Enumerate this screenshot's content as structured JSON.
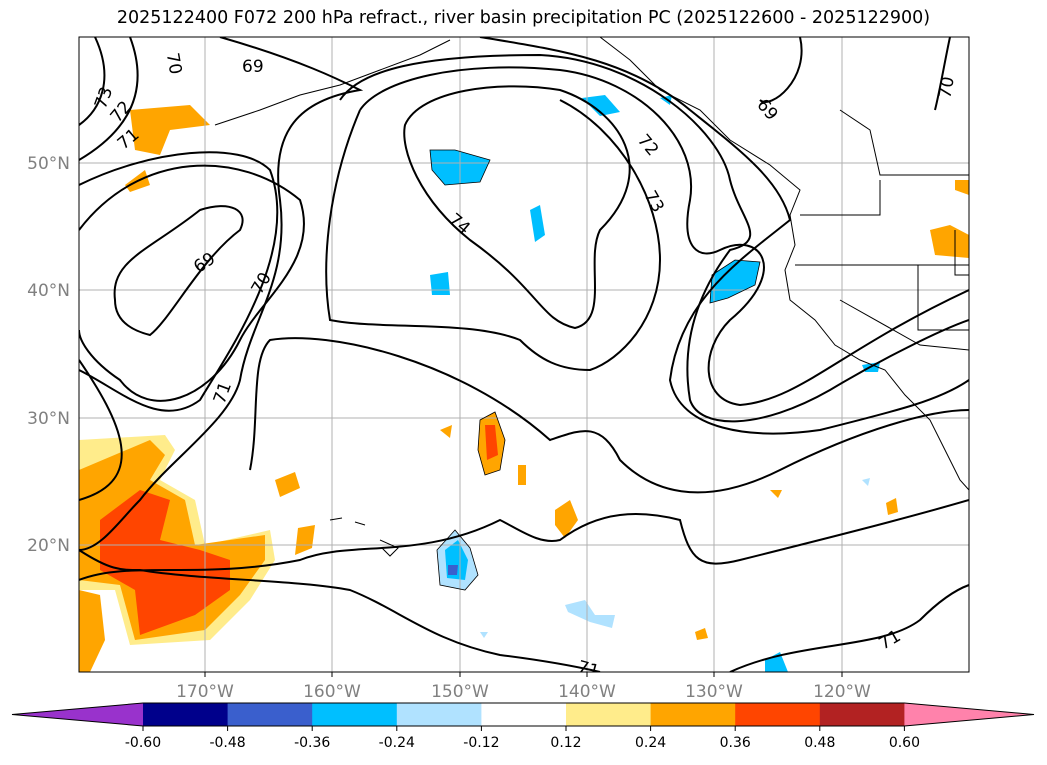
{
  "title": "2025122400 F072 200 hPa refract., river basin precipitation PC (2025122600 - 2025122900)",
  "lon_labels": [
    "170°W",
    "160°W",
    "150°W",
    "140°W",
    "130°W",
    "120°W"
  ],
  "lat_labels": [
    "50°N",
    "40°N",
    "30°N",
    "20°N"
  ],
  "contour_labels": [
    "70",
    "69",
    "73",
    "72",
    "71",
    "74",
    "72",
    "73",
    "69",
    "70",
    "69",
    "70",
    "71",
    "71",
    "71"
  ],
  "colorbar": {
    "ticks": [
      "-0.60",
      "-0.48",
      "-0.36",
      "-0.24",
      "-0.12",
      "0.12",
      "0.24",
      "0.36",
      "0.48",
      "0.60"
    ],
    "colors": [
      "#9932CC",
      "#00008B",
      "#3A5FCD",
      "#00BFFF",
      "#B0E2FF",
      "#FFFFFF",
      "#FFEC8B",
      "#FFA500",
      "#FF4500",
      "#B22222",
      "#FF82AB"
    ]
  }
}
